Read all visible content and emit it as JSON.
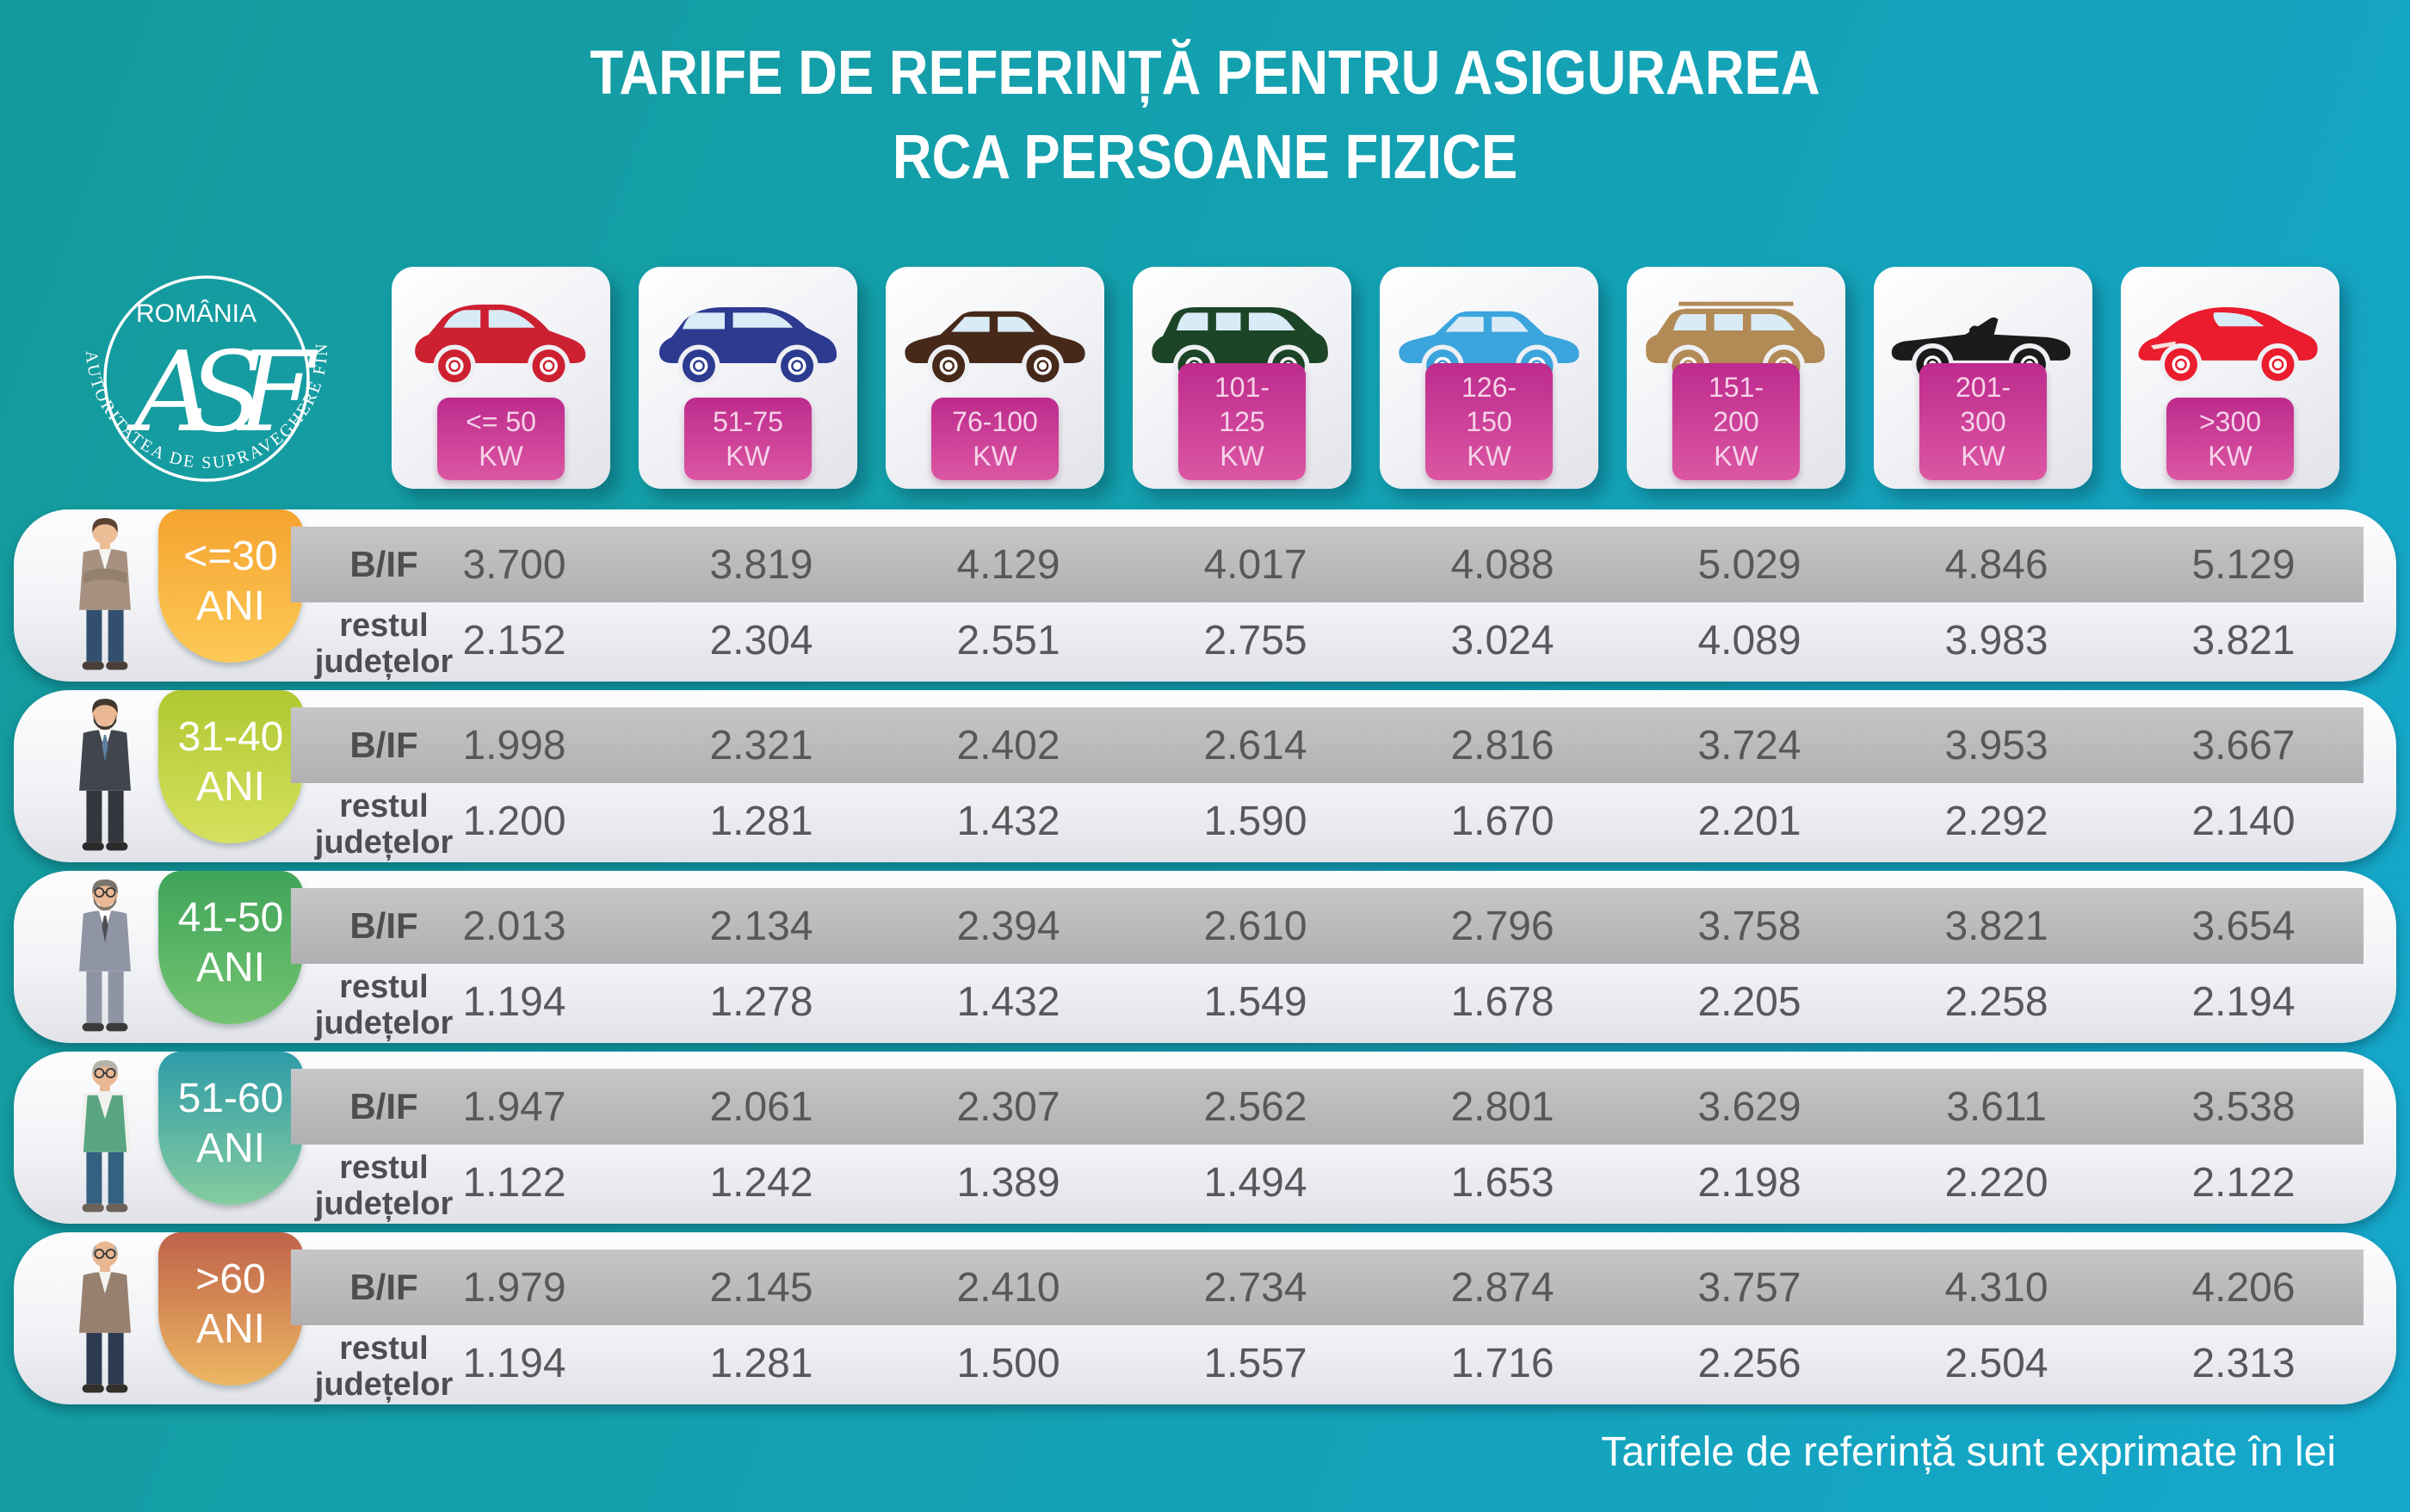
{
  "title": {
    "line1": "TARIFE DE REFERINȚĂ PENTRU ASIGURAREA",
    "line2": "RCA PERSOANE FIZICE"
  },
  "logo": {
    "country": "ROMÂNIA",
    "monogram": "ASF",
    "ring_text": "AUTORITATEA DE SUPRAVEGHERE FINANCIARĂ"
  },
  "power_categories": [
    {
      "label_top": "<= 50",
      "label_bottom": "KW",
      "car": "city",
      "color": "#cd2030"
    },
    {
      "label_top": "51-75",
      "label_bottom": "KW",
      "car": "suv",
      "color": "#2c3a90"
    },
    {
      "label_top": "76-100",
      "label_bottom": "KW",
      "car": "sedan",
      "color": "#47291a"
    },
    {
      "label_top": "101-125",
      "label_bottom": "KW",
      "car": "minivan",
      "color": "#1c4527"
    },
    {
      "label_top": "126-150",
      "label_bottom": "KW",
      "car": "sedan2",
      "color": "#3ba4dd"
    },
    {
      "label_top": "151-200",
      "label_bottom": "KW",
      "car": "suvboxy",
      "color": "#b28a55"
    },
    {
      "label_top": "201-300",
      "label_bottom": "KW",
      "car": "convertible",
      "color": "#1b1b1b"
    },
    {
      "label_top": ">300",
      "label_bottom": "KW",
      "car": "sports",
      "color": "#ea1c2d"
    }
  ],
  "row_labels": {
    "bif": "B/IF",
    "rest_line1": "restul",
    "rest_line2": "județelor"
  },
  "age_groups": [
    {
      "label_line1": "<=30",
      "label_line2": "ANI",
      "person": "young-man",
      "badge_from": "#f5a32f",
      "badge_to": "#fdc957",
      "bif": [
        "3.700",
        "3.819",
        "4.129",
        "4.017",
        "4.088",
        "5.029",
        "4.846",
        "5.129"
      ],
      "rest": [
        "2.152",
        "2.304",
        "2.551",
        "2.755",
        "3.024",
        "4.089",
        "3.983",
        "3.821"
      ]
    },
    {
      "label_line1": "31-40",
      "label_line2": "ANI",
      "person": "suit-man",
      "badge_from": "#b0c832",
      "badge_to": "#d6e15e",
      "bif": [
        "1.998",
        "2.321",
        "2.402",
        "2.614",
        "2.816",
        "3.724",
        "3.953",
        "3.667"
      ],
      "rest": [
        "1.200",
        "1.281",
        "1.432",
        "1.590",
        "1.670",
        "2.201",
        "2.292",
        "2.140"
      ]
    },
    {
      "label_line1": "41-50",
      "label_line2": "ANI",
      "person": "gray-suit-man",
      "badge_from": "#3fa459",
      "badge_to": "#74c472",
      "bif": [
        "2.013",
        "2.134",
        "2.394",
        "2.610",
        "2.796",
        "3.758",
        "3.821",
        "3.654"
      ],
      "rest": [
        "1.194",
        "1.278",
        "1.432",
        "1.549",
        "1.678",
        "2.205",
        "2.258",
        "2.194"
      ]
    },
    {
      "label_line1": "51-60",
      "label_line2": "ANI",
      "person": "vest-man",
      "badge_from": "#2e9ca8",
      "badge_to": "#86cc9f",
      "bif": [
        "1.947",
        "2.061",
        "2.307",
        "2.562",
        "2.801",
        "3.629",
        "3.611",
        "3.538"
      ],
      "rest": [
        "1.122",
        "1.242",
        "1.389",
        "1.494",
        "1.653",
        "2.198",
        "2.220",
        "2.122"
      ]
    },
    {
      "label_line1": ">60",
      "label_line2": "ANI",
      "person": "elder-man",
      "badge_from": "#bf6249",
      "badge_to": "#edb763",
      "bif": [
        "1.979",
        "2.145",
        "2.410",
        "2.734",
        "2.874",
        "3.757",
        "4.310",
        "4.206"
      ],
      "rest": [
        "1.194",
        "1.281",
        "1.500",
        "1.557",
        "1.716",
        "2.256",
        "2.504",
        "2.313"
      ]
    }
  ],
  "footer": {
    "note": "Tarifele de referință sunt exprimate în lei"
  },
  "colors": {
    "background_left": "#149a9b",
    "background_right": "#15a7cc",
    "kw_badge_from": "#bd2b8d",
    "kw_badge_to": "#dc56a3",
    "bif_bar": "#b9b9bb",
    "value_text": "#58585a",
    "label_text": "#4d4e50"
  },
  "chart_data": {
    "type": "table",
    "title": "TARIFE DE REFERINȚĂ PENTRU ASIGURAREA RCA PERSOANE FIZICE",
    "unit_note": "Tarifele de referință sunt exprimate în lei",
    "columns_kw": [
      "<= 50 KW",
      "51-75 KW",
      "76-100 KW",
      "101-125 KW",
      "126-150 KW",
      "151-200 KW",
      "201-300 KW",
      ">300 KW"
    ],
    "rows": [
      {
        "age": "<=30 ANI",
        "region": "B/IF",
        "values": [
          3700,
          3819,
          4129,
          4017,
          4088,
          5029,
          4846,
          5129
        ]
      },
      {
        "age": "<=30 ANI",
        "region": "restul județelor",
        "values": [
          2152,
          2304,
          2551,
          2755,
          3024,
          4089,
          3983,
          3821
        ]
      },
      {
        "age": "31-40 ANI",
        "region": "B/IF",
        "values": [
          1998,
          2321,
          2402,
          2614,
          2816,
          3724,
          3953,
          3667
        ]
      },
      {
        "age": "31-40 ANI",
        "region": "restul județelor",
        "values": [
          1200,
          1281,
          1432,
          1590,
          1670,
          2201,
          2292,
          2140
        ]
      },
      {
        "age": "41-50 ANI",
        "region": "B/IF",
        "values": [
          2013,
          2134,
          2394,
          2610,
          2796,
          3758,
          3821,
          3654
        ]
      },
      {
        "age": "41-50 ANI",
        "region": "restul județelor",
        "values": [
          1194,
          1278,
          1432,
          1549,
          1678,
          2205,
          2258,
          2194
        ]
      },
      {
        "age": "51-60 ANI",
        "region": "B/IF",
        "values": [
          1947,
          2061,
          2307,
          2562,
          2801,
          3629,
          3611,
          3538
        ]
      },
      {
        "age": "51-60 ANI",
        "region": "restul județelor",
        "values": [
          1122,
          1242,
          1389,
          1494,
          1653,
          2198,
          2220,
          2122
        ]
      },
      {
        "age": ">60 ANI",
        "region": "B/IF",
        "values": [
          1979,
          2145,
          2410,
          2734,
          2874,
          3757,
          4310,
          4206
        ]
      },
      {
        "age": ">60 ANI",
        "region": "restul județelor",
        "values": [
          1194,
          1281,
          1500,
          1557,
          1716,
          2256,
          2504,
          2313
        ]
      }
    ]
  }
}
